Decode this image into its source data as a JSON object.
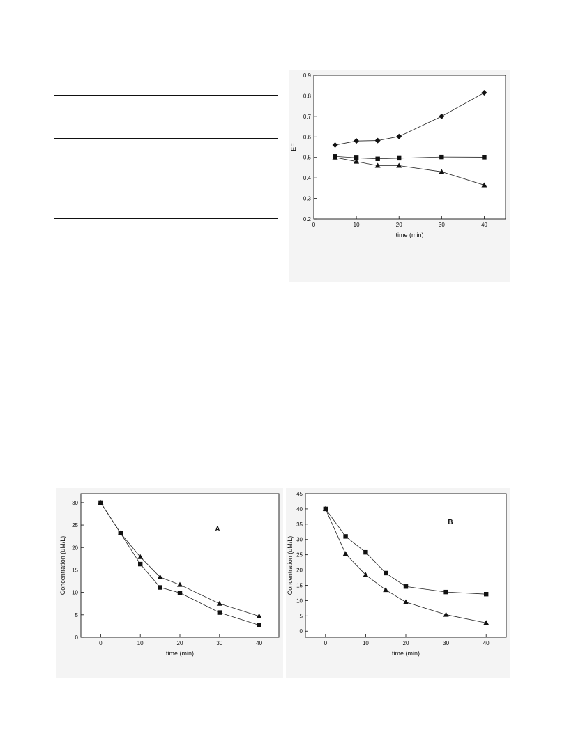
{
  "chart_data": [
    {
      "type": "line",
      "xlabel": "time (min)",
      "ylabel": "EF",
      "xlim": [
        0,
        45
      ],
      "ylim": [
        0.2,
        0.9
      ],
      "xticks": [
        0,
        10,
        20,
        30,
        40
      ],
      "yticks": [
        0.2,
        0.3,
        0.4,
        0.5,
        0.6,
        0.7,
        0.8,
        0.9
      ],
      "grid": false,
      "series": [
        {
          "marker": "diamond",
          "x": [
            5,
            10,
            15,
            20,
            30,
            40
          ],
          "y": [
            0.56,
            0.58,
            0.582,
            0.602,
            0.7,
            0.815
          ]
        },
        {
          "marker": "square",
          "x": [
            5,
            10,
            15,
            20,
            30,
            40
          ],
          "y": [
            0.505,
            0.498,
            0.493,
            0.496,
            0.502,
            0.501
          ]
        },
        {
          "marker": "triangle",
          "x": [
            5,
            10,
            15,
            20,
            30,
            40
          ],
          "y": [
            0.5,
            0.48,
            0.46,
            0.46,
            0.43,
            0.365
          ]
        }
      ]
    },
    {
      "type": "line",
      "label": "A",
      "xlabel": "time (min)",
      "ylabel": "Concentration (uM/L)",
      "xlim": [
        -5,
        45
      ],
      "ylim": [
        0,
        32
      ],
      "xticks": [
        0,
        10,
        20,
        30,
        40
      ],
      "yticks": [
        0,
        5,
        10,
        15,
        20,
        25,
        30
      ],
      "grid": false,
      "series": [
        {
          "marker": "square",
          "x": [
            0,
            5,
            10,
            15,
            20,
            30,
            40
          ],
          "y": [
            30,
            23.2,
            16.3,
            11.1,
            9.9,
            5.5,
            2.7
          ]
        },
        {
          "marker": "triangle",
          "x": [
            0,
            5,
            10,
            15,
            20,
            30,
            40
          ],
          "y": [
            30,
            23.2,
            17.9,
            13.4,
            11.7,
            7.5,
            4.7
          ]
        }
      ]
    },
    {
      "type": "line",
      "label": "B",
      "xlabel": "time (min)",
      "ylabel": "Concentration (uM/L)",
      "xlim": [
        -5,
        45
      ],
      "ylim": [
        -2,
        45
      ],
      "xticks": [
        0,
        10,
        20,
        30,
        40
      ],
      "yticks": [
        0,
        5,
        10,
        15,
        20,
        25,
        30,
        35,
        40,
        45
      ],
      "grid": false,
      "series": [
        {
          "marker": "square",
          "x": [
            0,
            5,
            10,
            15,
            20,
            30,
            40
          ],
          "y": [
            40,
            31,
            25.8,
            19,
            14.6,
            12.8,
            12.1
          ]
        },
        {
          "marker": "triangle",
          "x": [
            0,
            5,
            10,
            15,
            20,
            30,
            40
          ],
          "y": [
            40,
            25.3,
            18.4,
            13.5,
            9.5,
            5.4,
            2.7
          ]
        }
      ]
    }
  ]
}
